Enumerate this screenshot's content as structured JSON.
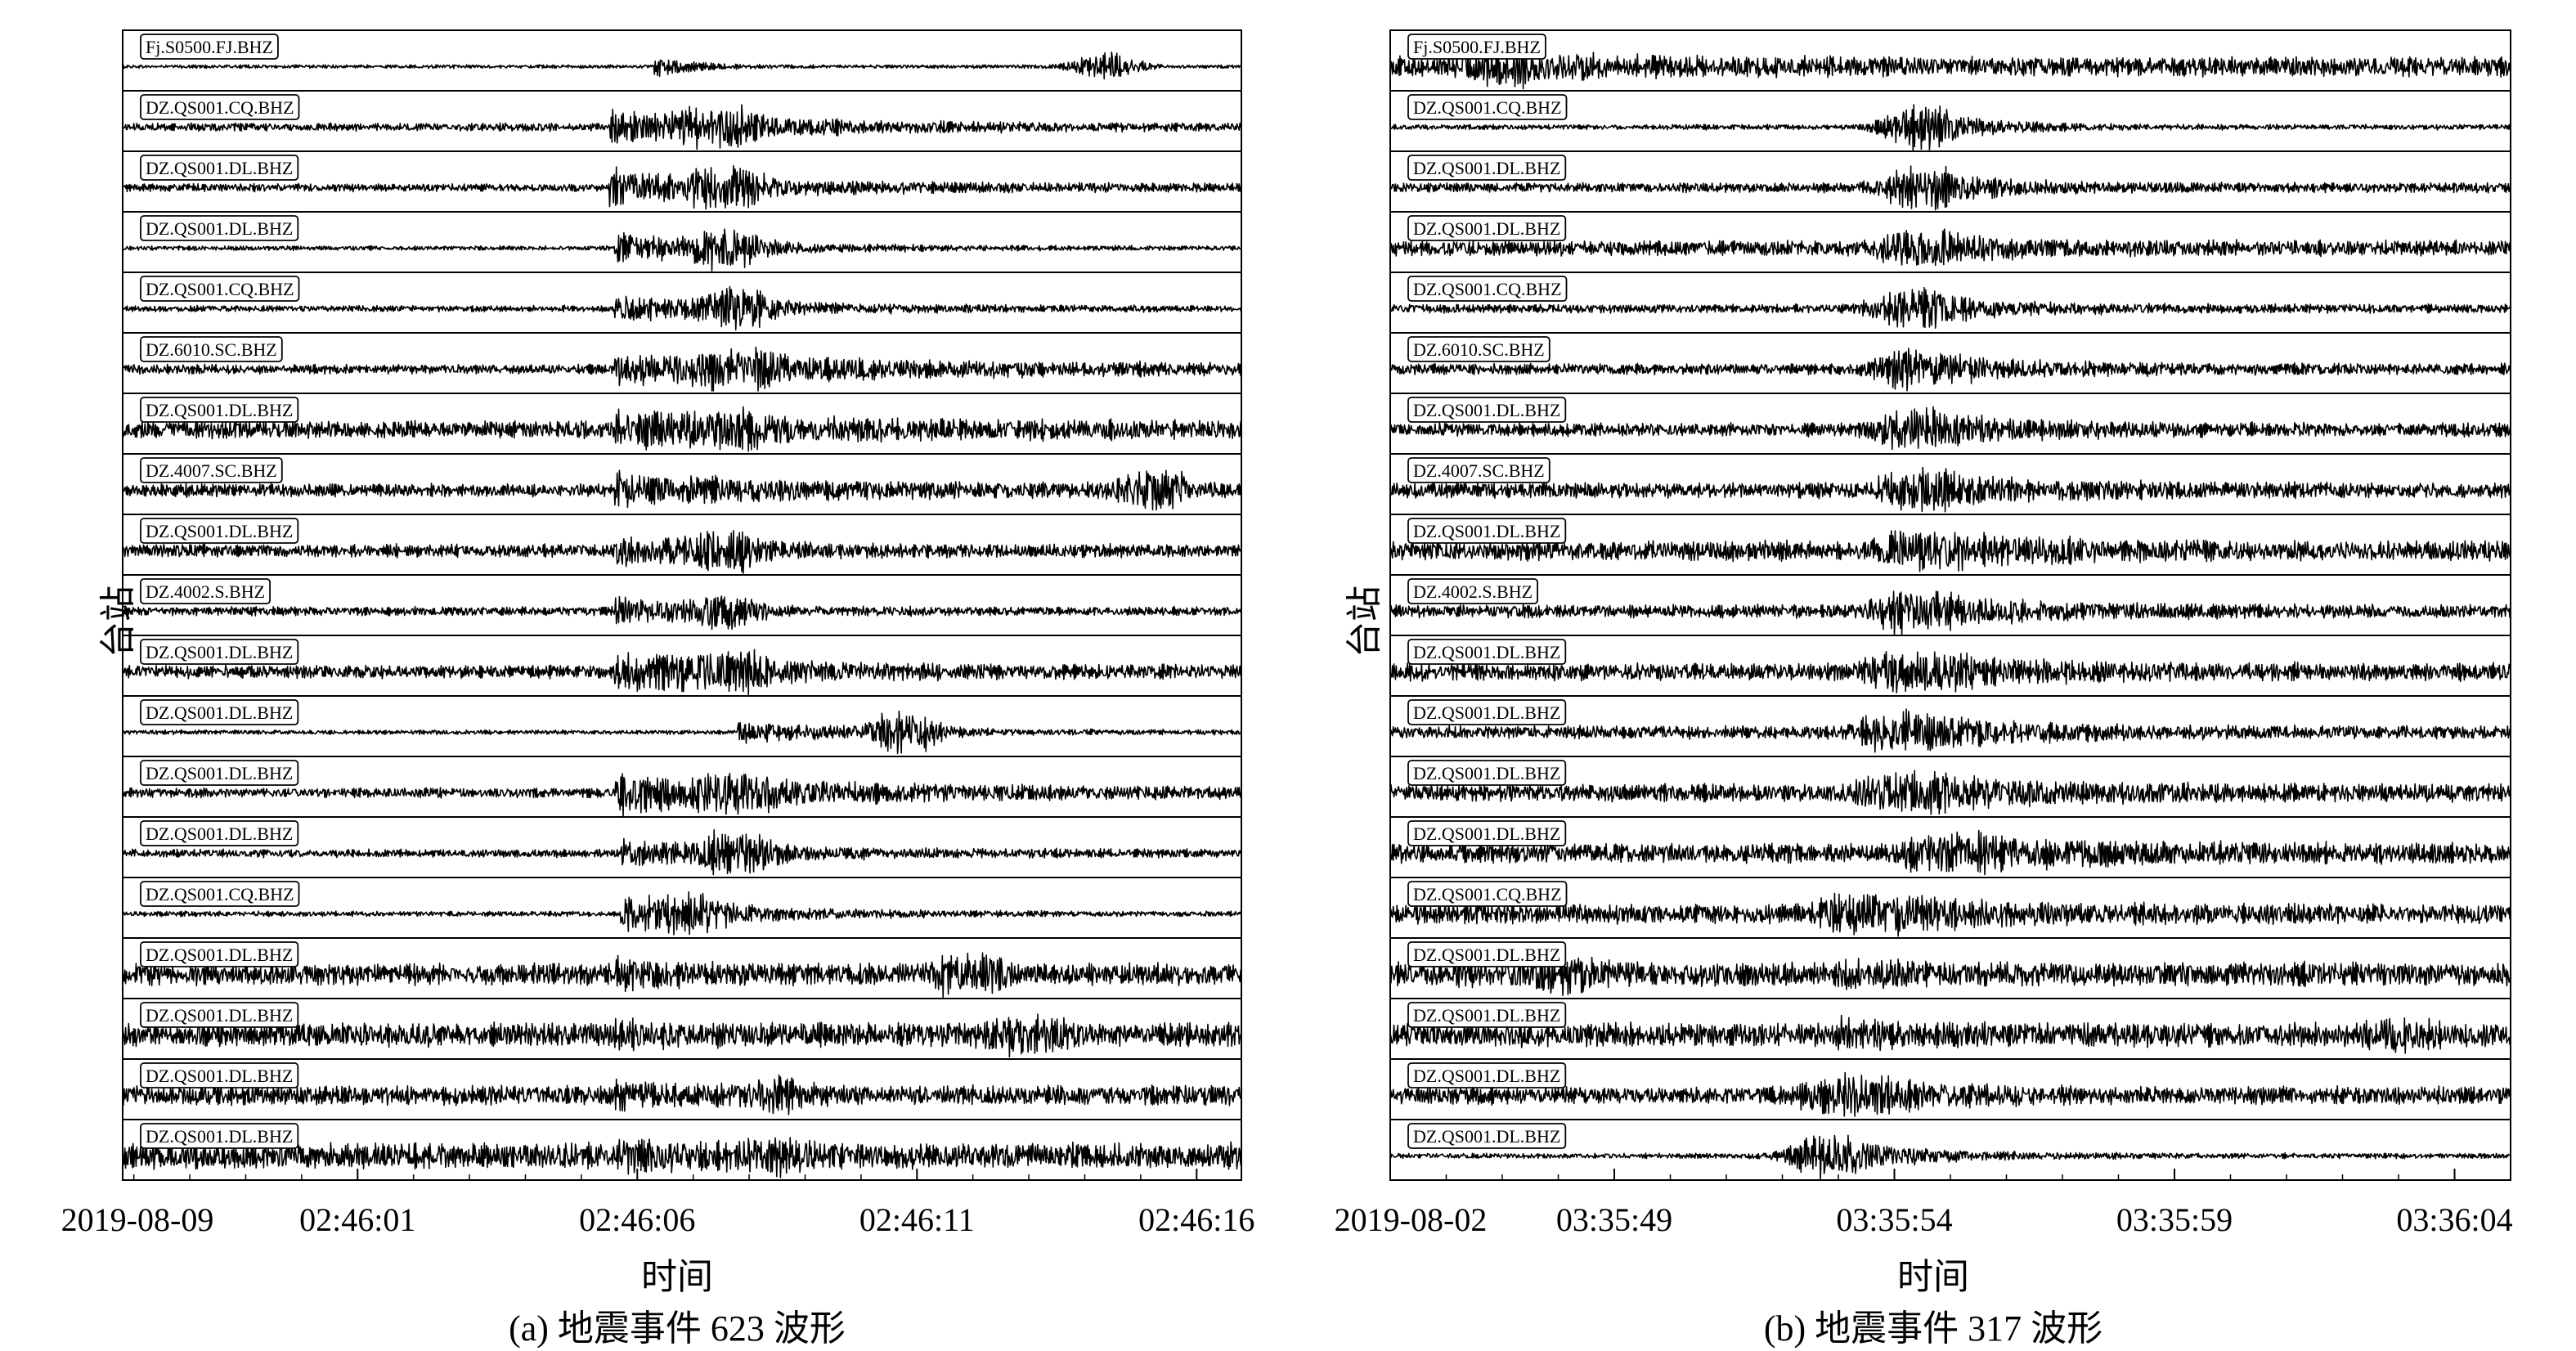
{
  "chart_data": [
    {
      "type": "line",
      "panel": "a",
      "caption": "(a) 地震事件 623 波形",
      "xlabel": "时间",
      "ylabel": "台站",
      "date_label": "2019-08-09",
      "x_ticks": [
        "02:46:01",
        "02:46:06",
        "02:46:11",
        "02:46:16"
      ],
      "x_tick_seconds": [
        1,
        6,
        11,
        16
      ],
      "xlim_seconds": [
        -3.2,
        16.8
      ],
      "series": [
        {
          "name": "Fj.S0500.FJ.BHZ",
          "arrival_s": 6.3,
          "noise": 0.08,
          "burst_amp": 0.55,
          "burst_len": 0.6,
          "extra_burst_s": 14.4,
          "extra_amp": 0.6
        },
        {
          "name": "DZ.QS001.CQ.BHZ",
          "arrival_s": 5.5,
          "noise": 0.18,
          "burst_amp": 0.75,
          "burst_len": 3.0,
          "extra_burst_s": 7.4,
          "extra_amp": 0.9
        },
        {
          "name": "DZ.QS001.DL.BHZ",
          "arrival_s": 5.5,
          "noise": 0.18,
          "burst_amp": 0.75,
          "burst_len": 3.0,
          "extra_burst_s": 7.6,
          "extra_amp": 0.9
        },
        {
          "name": "DZ.QS001.DL.BHZ",
          "arrival_s": 5.6,
          "noise": 0.1,
          "burst_amp": 0.7,
          "burst_len": 2.4,
          "extra_burst_s": 7.6,
          "extra_amp": 0.8
        },
        {
          "name": "DZ.QS001.CQ.BHZ",
          "arrival_s": 5.6,
          "noise": 0.14,
          "burst_amp": 0.55,
          "burst_len": 2.8,
          "extra_burst_s": 7.8,
          "extra_amp": 0.8
        },
        {
          "name": "DZ.6010.SC.BHZ",
          "arrival_s": 5.6,
          "noise": 0.22,
          "burst_amp": 0.65,
          "burst_len": 6.0,
          "extra_burst_s": 7.8,
          "extra_amp": 0.9
        },
        {
          "name": "DZ.QS001.DL.BHZ",
          "arrival_s": 5.6,
          "noise": 0.4,
          "burst_amp": 0.6,
          "burst_len": 4.0,
          "extra_burst_s": 7.6,
          "extra_amp": 0.9
        },
        {
          "name": "DZ.4007.SC.BHZ",
          "arrival_s": 5.6,
          "noise": 0.3,
          "burst_amp": 0.55,
          "burst_len": 4.0,
          "extra_burst_s": 15.3,
          "extra_amp": 0.9
        },
        {
          "name": "DZ.QS001.DL.BHZ",
          "arrival_s": 5.6,
          "noise": 0.3,
          "burst_amp": 0.55,
          "burst_len": 2.0,
          "extra_burst_s": 7.5,
          "extra_amp": 0.8
        },
        {
          "name": "DZ.4002.S.BHZ",
          "arrival_s": 5.6,
          "noise": 0.2,
          "burst_amp": 0.6,
          "burst_len": 1.6,
          "extra_burst_s": 7.5,
          "extra_amp": 0.6
        },
        {
          "name": "DZ.QS001.DL.BHZ",
          "arrival_s": 5.6,
          "noise": 0.3,
          "burst_amp": 0.75,
          "burst_len": 3.0,
          "extra_burst_s": 7.6,
          "extra_amp": 0.9
        },
        {
          "name": "DZ.QS001.DL.BHZ",
          "arrival_s": 7.8,
          "noise": 0.1,
          "burst_amp": 0.5,
          "burst_len": 2.5,
          "extra_burst_s": 10.8,
          "extra_amp": 0.9
        },
        {
          "name": "DZ.QS001.DL.BHZ",
          "arrival_s": 5.6,
          "noise": 0.22,
          "burst_amp": 0.85,
          "burst_len": 4.5,
          "extra_burst_s": 7.8,
          "extra_amp": 0.8
        },
        {
          "name": "DZ.QS001.DL.BHZ",
          "arrival_s": 5.7,
          "noise": 0.18,
          "burst_amp": 0.55,
          "burst_len": 3.0,
          "extra_burst_s": 7.8,
          "extra_amp": 0.9
        },
        {
          "name": "DZ.QS001.CQ.BHZ",
          "arrival_s": 5.7,
          "noise": 0.12,
          "burst_amp": 0.85,
          "burst_len": 2.2,
          "extra_burst_s": 7.0,
          "extra_amp": 0.6
        },
        {
          "name": "DZ.QS001.DL.BHZ",
          "arrival_s": 5.6,
          "noise": 0.5,
          "burst_amp": 0.4,
          "burst_len": 1.0,
          "extra_burst_s": 11.9,
          "extra_amp": 0.9
        },
        {
          "name": "DZ.QS001.DL.BHZ",
          "arrival_s": 5.6,
          "noise": 0.55,
          "burst_amp": 0.4,
          "burst_len": 1.0,
          "extra_burst_s": 13.0,
          "extra_amp": 0.8
        },
        {
          "name": "DZ.QS001.DL.BHZ",
          "arrival_s": 5.6,
          "noise": 0.45,
          "burst_amp": 0.45,
          "burst_len": 1.0,
          "extra_burst_s": 8.5,
          "extra_amp": 0.5
        },
        {
          "name": "DZ.QS001.DL.BHZ",
          "arrival_s": 5.6,
          "noise": 0.6,
          "burst_amp": 0.4,
          "burst_len": 1.0,
          "extra_burst_s": 8.5,
          "extra_amp": 0.4
        }
      ]
    },
    {
      "type": "line",
      "panel": "b",
      "caption": "(b) 地震事件 317 波形",
      "xlabel": "时间",
      "ylabel": "台站",
      "date_label": "2019-08-02",
      "x_ticks": [
        "03:35:49",
        "03:35:54",
        "03:35:59",
        "03:36:04"
      ],
      "x_tick_seconds": [
        49,
        54,
        59,
        64
      ],
      "xlim_seconds": [
        45.0,
        65.0
      ],
      "series": [
        {
          "name": "Fj.S0500.FJ.BHZ",
          "arrival_s": 46.8,
          "noise": 0.45,
          "burst_amp": 0.5,
          "burst_len": 2.0,
          "extra_burst_s": 46.8,
          "extra_amp": 0.5
        },
        {
          "name": "DZ.QS001.CQ.BHZ",
          "arrival_s": 54.3,
          "noise": 0.12,
          "burst_amp": 0.8,
          "burst_len": 1.2,
          "extra_burst_s": 54.4,
          "extra_amp": 0.9
        },
        {
          "name": "DZ.QS001.DL.BHZ",
          "arrival_s": 54.2,
          "noise": 0.22,
          "burst_amp": 0.8,
          "burst_len": 1.5,
          "extra_burst_s": 54.4,
          "extra_amp": 0.9
        },
        {
          "name": "DZ.QS001.DL.BHZ",
          "arrival_s": 54.2,
          "noise": 0.35,
          "burst_amp": 0.7,
          "burst_len": 1.5,
          "extra_burst_s": 54.3,
          "extra_amp": 0.8
        },
        {
          "name": "DZ.QS001.CQ.BHZ",
          "arrival_s": 54.1,
          "noise": 0.2,
          "burst_amp": 0.75,
          "burst_len": 1.5,
          "extra_burst_s": 54.2,
          "extra_amp": 0.8
        },
        {
          "name": "DZ.6010.SC.BHZ",
          "arrival_s": 54.0,
          "noise": 0.25,
          "burst_amp": 0.8,
          "burst_len": 1.8,
          "extra_burst_s": 54.3,
          "extra_amp": 0.8
        },
        {
          "name": "DZ.QS001.DL.BHZ",
          "arrival_s": 54.0,
          "noise": 0.3,
          "burst_amp": 0.85,
          "burst_len": 2.0,
          "extra_burst_s": 54.2,
          "extra_amp": 0.9
        },
        {
          "name": "DZ.4007.SC.BHZ",
          "arrival_s": 54.0,
          "noise": 0.35,
          "burst_amp": 0.8,
          "burst_len": 2.0,
          "extra_burst_s": 54.3,
          "extra_amp": 0.9
        },
        {
          "name": "DZ.QS001.DL.BHZ",
          "arrival_s": 54.0,
          "noise": 0.45,
          "burst_amp": 0.85,
          "burst_len": 2.0,
          "extra_burst_s": 54.4,
          "extra_amp": 0.9
        },
        {
          "name": "DZ.4002.S.BHZ",
          "arrival_s": 53.9,
          "noise": 0.3,
          "burst_amp": 0.8,
          "burst_len": 2.0,
          "extra_burst_s": 54.2,
          "extra_amp": 0.9
        },
        {
          "name": "DZ.QS001.DL.BHZ",
          "arrival_s": 53.9,
          "noise": 0.4,
          "burst_amp": 0.85,
          "burst_len": 2.0,
          "extra_burst_s": 54.2,
          "extra_amp": 0.9
        },
        {
          "name": "DZ.QS001.DL.BHZ",
          "arrival_s": 54.0,
          "noise": 0.3,
          "burst_amp": 0.8,
          "burst_len": 2.0,
          "extra_burst_s": 54.0,
          "extra_amp": 0.9
        },
        {
          "name": "DZ.QS001.DL.BHZ",
          "arrival_s": 54.0,
          "noise": 0.4,
          "burst_amp": 0.8,
          "burst_len": 2.0,
          "extra_burst_s": 54.0,
          "extra_amp": 0.9
        },
        {
          "name": "DZ.QS001.DL.BHZ",
          "arrival_s": 54.2,
          "noise": 0.45,
          "burst_amp": 0.8,
          "burst_len": 2.5,
          "extra_burst_s": 55.0,
          "extra_amp": 0.9
        },
        {
          "name": "DZ.QS001.CQ.BHZ",
          "arrival_s": 53.5,
          "noise": 0.45,
          "burst_amp": 0.75,
          "burst_len": 1.8,
          "extra_burst_s": 53.4,
          "extra_amp": 0.9
        },
        {
          "name": "DZ.QS001.DL.BHZ",
          "arrival_s": 53.0,
          "noise": 0.55,
          "burst_amp": 0.4,
          "burst_len": 1.0,
          "extra_burst_s": 48.0,
          "extra_amp": 0.6
        },
        {
          "name": "DZ.QS001.DL.BHZ",
          "arrival_s": 53.0,
          "noise": 0.55,
          "burst_amp": 0.4,
          "burst_len": 1.0,
          "extra_burst_s": 63.0,
          "extra_amp": 0.5
        },
        {
          "name": "DZ.QS001.DL.BHZ",
          "arrival_s": 53.2,
          "noise": 0.4,
          "burst_amp": 0.75,
          "burst_len": 1.5,
          "extra_burst_s": 53.0,
          "extra_amp": 0.9
        },
        {
          "name": "DZ.QS001.DL.BHZ",
          "arrival_s": 52.9,
          "noise": 0.12,
          "burst_amp": 0.8,
          "burst_len": 1.5,
          "extra_burst_s": 52.7,
          "extra_amp": 0.9
        }
      ]
    }
  ]
}
